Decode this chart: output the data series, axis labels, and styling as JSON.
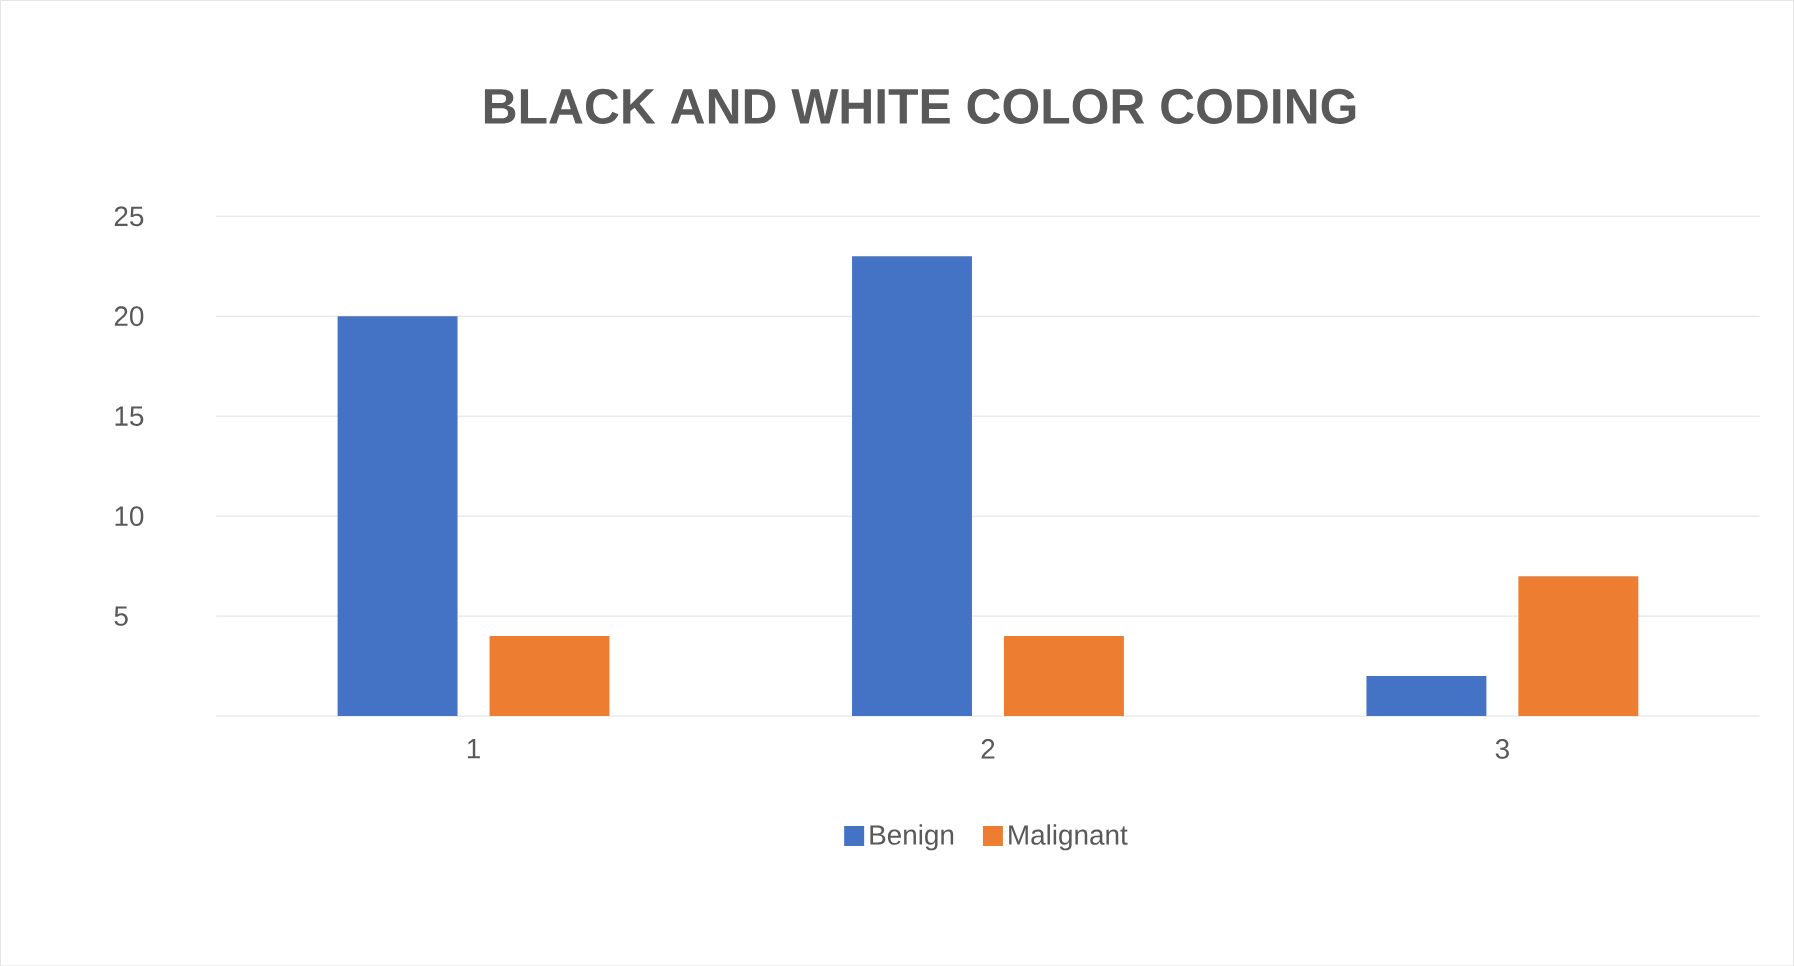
{
  "chart_data": {
    "type": "bar",
    "title": "BLACK AND WHITE COLOR CODING",
    "categories": [
      "1",
      "2",
      "3"
    ],
    "series": [
      {
        "name": "Benign",
        "color": "#4472c4",
        "values": [
          20,
          23,
          2
        ]
      },
      {
        "name": "Malignant",
        "color": "#ed7d31",
        "values": [
          4,
          4,
          7
        ]
      }
    ],
    "ylim": [
      0,
      25
    ],
    "yticks": [
      {
        "value": 0,
        "label": null
      },
      5,
      10,
      15,
      20,
      25
    ],
    "grid": "y",
    "legend": "bottom"
  }
}
